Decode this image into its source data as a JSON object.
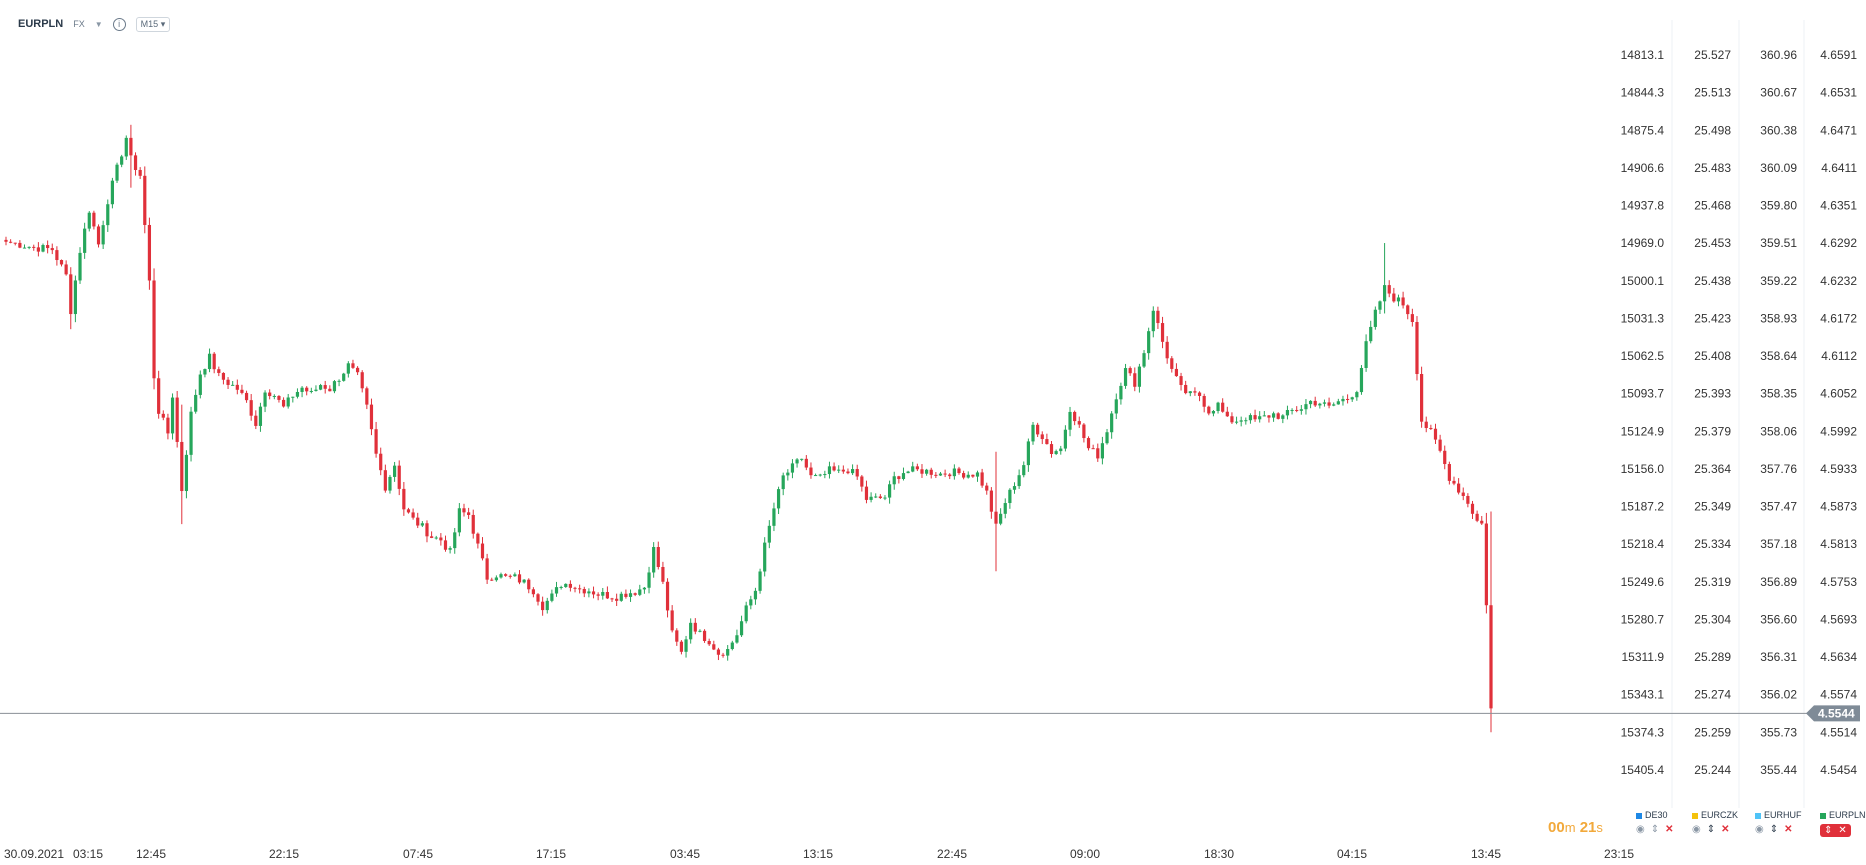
{
  "header": {
    "symbol": "EURPLN",
    "type": "FX",
    "info": "i",
    "timeframe": "M15"
  },
  "countdown": {
    "minutes": "00",
    "m": "m",
    "seconds": "21",
    "s": "s"
  },
  "current_price": "4.5544",
  "colors": {
    "up": "#26a65b",
    "down": "#e0303a",
    "price_tag": "#7f8b97",
    "countdown": "#f2a93b",
    "de30": "#1e88e5",
    "eurczk": "#f4c20d",
    "eurhuf": "#4fc3f7",
    "eurpln": "#26a65b"
  },
  "legend": [
    {
      "name": "DE30"
    },
    {
      "name": "EURCZK"
    },
    {
      "name": "EURHUF"
    },
    {
      "name": "EURPLN"
    }
  ],
  "chart_data": {
    "type": "candlestick",
    "time_labels": [
      "30.09.2021",
      "03:15",
      "12:45",
      "22:15",
      "07:45",
      "17:15",
      "03:45",
      "13:15",
      "22:45",
      "09:00",
      "18:30",
      "04:15",
      "13:45",
      "23:15"
    ],
    "y_axes": [
      {
        "name": "DE30",
        "ticks": [
          "14813.1",
          "14844.3",
          "14875.4",
          "14906.6",
          "14937.8",
          "14969.0",
          "15000.1",
          "15031.3",
          "15062.5",
          "15093.7",
          "15124.9",
          "15156.0",
          "15187.2",
          "15218.4",
          "15249.6",
          "15280.7",
          "15311.9",
          "15343.1",
          "15374.3",
          "15405.4"
        ]
      },
      {
        "name": "EURCZK",
        "ticks": [
          "25.527",
          "25.513",
          "25.498",
          "25.483",
          "25.468",
          "25.453",
          "25.438",
          "25.423",
          "25.408",
          "25.393",
          "25.379",
          "25.364",
          "25.349",
          "25.334",
          "25.319",
          "25.304",
          "25.289",
          "25.274",
          "25.259",
          "25.244"
        ]
      },
      {
        "name": "EURHUF",
        "ticks": [
          "360.96",
          "360.67",
          "360.38",
          "360.09",
          "359.80",
          "359.51",
          "359.22",
          "358.93",
          "358.64",
          "358.35",
          "358.06",
          "357.76",
          "357.47",
          "357.18",
          "356.89",
          "356.60",
          "356.31",
          "356.02",
          "355.73",
          "355.44"
        ]
      },
      {
        "name": "EURPLN",
        "ticks": [
          "4.6591",
          "4.6531",
          "4.6471",
          "4.6411",
          "4.6351",
          "4.6292",
          "4.6232",
          "4.6172",
          "4.6112",
          "4.6052",
          "4.5992",
          "4.5933",
          "4.5873",
          "4.5813",
          "4.5753",
          "4.5693",
          "4.5634",
          "4.5574",
          "4.5514",
          "4.5454"
        ]
      }
    ],
    "ylim": [
      4.5454,
      4.6591
    ],
    "close_path": [
      [
        0,
        4.6294
      ],
      [
        3,
        4.629
      ],
      [
        6,
        4.6285
      ],
      [
        10,
        4.6282
      ],
      [
        13,
        4.624
      ],
      [
        14,
        4.6185
      ],
      [
        16,
        4.628
      ],
      [
        18,
        4.6345
      ],
      [
        20,
        4.629
      ],
      [
        22,
        4.636
      ],
      [
        24,
        4.641
      ],
      [
        26,
        4.646
      ],
      [
        27,
        4.6425
      ],
      [
        29,
        4.64
      ],
      [
        30,
        4.632
      ],
      [
        31,
        4.623
      ],
      [
        32,
        4.608
      ],
      [
        33,
        4.6025
      ],
      [
        35,
        4.599
      ],
      [
        36,
        4.605
      ],
      [
        38,
        4.59
      ],
      [
        40,
        4.602
      ],
      [
        42,
        4.6085
      ],
      [
        44,
        4.611
      ],
      [
        46,
        4.608
      ],
      [
        48,
        4.607
      ],
      [
        50,
        4.606
      ],
      [
        52,
        4.604
      ],
      [
        54,
        4.6005
      ],
      [
        56,
        4.606
      ],
      [
        58,
        4.605
      ],
      [
        60,
        4.603
      ],
      [
        62,
        4.605
      ],
      [
        64,
        4.6062
      ],
      [
        66,
        4.6052
      ],
      [
        68,
        4.6067
      ],
      [
        70,
        4.606
      ],
      [
        72,
        4.6078
      ],
      [
        74,
        4.6097
      ],
      [
        76,
        4.608
      ],
      [
        78,
        4.603
      ],
      [
        80,
        4.5955
      ],
      [
        82,
        4.5905
      ],
      [
        84,
        4.594
      ],
      [
        86,
        4.587
      ],
      [
        88,
        4.5852
      ],
      [
        90,
        4.584
      ],
      [
        92,
        4.5825
      ],
      [
        94,
        4.582
      ],
      [
        96,
        4.58
      ],
      [
        98,
        4.5865
      ],
      [
        100,
        4.586
      ],
      [
        102,
        4.581
      ],
      [
        104,
        4.576
      ],
      [
        106,
        4.5765
      ],
      [
        108,
        4.576
      ],
      [
        110,
        4.576
      ],
      [
        112,
        4.5752
      ],
      [
        114,
        4.574
      ],
      [
        116,
        4.5715
      ],
      [
        118,
        4.573
      ],
      [
        120,
        4.575
      ],
      [
        122,
        4.575
      ],
      [
        124,
        4.5742
      ],
      [
        126,
        4.574
      ],
      [
        128,
        4.5734
      ],
      [
        130,
        4.5732
      ],
      [
        132,
        4.573
      ],
      [
        134,
        4.5735
      ],
      [
        136,
        4.5738
      ],
      [
        138,
        4.5745
      ],
      [
        140,
        4.5805
      ],
      [
        142,
        4.575
      ],
      [
        144,
        4.567
      ],
      [
        146,
        4.564
      ],
      [
        148,
        4.569
      ],
      [
        150,
        4.567
      ],
      [
        152,
        4.566
      ],
      [
        154,
        4.564
      ],
      [
        156,
        4.5645
      ],
      [
        158,
        4.567
      ],
      [
        160,
        4.571
      ],
      [
        162,
        4.574
      ],
      [
        164,
        4.581
      ],
      [
        166,
        4.587
      ],
      [
        168,
        4.592
      ],
      [
        170,
        4.5935
      ],
      [
        172,
        4.595
      ],
      [
        174,
        4.592
      ],
      [
        176,
        4.5918
      ],
      [
        178,
        4.593
      ],
      [
        180,
        4.5927
      ],
      [
        182,
        4.5932
      ],
      [
        184,
        4.592
      ],
      [
        186,
        4.5885
      ],
      [
        188,
        4.5885
      ],
      [
        190,
        4.5888
      ],
      [
        192,
        4.5918
      ],
      [
        194,
        4.5928
      ],
      [
        196,
        4.593
      ],
      [
        198,
        4.593
      ],
      [
        200,
        4.5928
      ],
      [
        202,
        4.5925
      ],
      [
        204,
        4.5928
      ],
      [
        206,
        4.5926
      ],
      [
        208,
        4.5925
      ],
      [
        210,
        4.5925
      ],
      [
        212,
        4.5895
      ],
      [
        214,
        4.584
      ],
      [
        216,
        4.588
      ],
      [
        218,
        4.591
      ],
      [
        220,
        4.594
      ],
      [
        222,
        4.6002
      ],
      [
        224,
        4.5985
      ],
      [
        226,
        4.596
      ],
      [
        228,
        4.5965
      ],
      [
        230,
        4.603
      ],
      [
        232,
        4.6
      ],
      [
        234,
        4.5965
      ],
      [
        236,
        4.5955
      ],
      [
        238,
        4.5995
      ],
      [
        240,
        4.605
      ],
      [
        242,
        4.609
      ],
      [
        244,
        4.607
      ],
      [
        246,
        4.612
      ],
      [
        248,
        4.6188
      ],
      [
        250,
        4.6135
      ],
      [
        252,
        4.609
      ],
      [
        254,
        4.606
      ],
      [
        256,
        4.605
      ],
      [
        258,
        4.605
      ],
      [
        260,
        4.6025
      ],
      [
        262,
        4.6035
      ],
      [
        264,
        4.601
      ],
      [
        266,
        4.601
      ],
      [
        268,
        4.6015
      ],
      [
        270,
        4.601
      ],
      [
        272,
        4.6015
      ],
      [
        274,
        4.602
      ],
      [
        276,
        4.6015
      ],
      [
        278,
        4.6025
      ],
      [
        280,
        4.603
      ],
      [
        282,
        4.604
      ],
      [
        284,
        4.6038
      ],
      [
        286,
        4.603
      ],
      [
        288,
        4.604
      ],
      [
        290,
        4.6045
      ],
      [
        292,
        4.606
      ],
      [
        294,
        4.613
      ],
      [
        296,
        4.618
      ],
      [
        298,
        4.622
      ],
      [
        300,
        4.6205
      ],
      [
        302,
        4.6195
      ],
      [
        304,
        4.617
      ],
      [
        306,
        4.601
      ],
      [
        308,
        4.599
      ],
      [
        310,
        4.596
      ],
      [
        312,
        4.592
      ],
      [
        314,
        4.59
      ],
      [
        316,
        4.588
      ],
      [
        318,
        4.585
      ],
      [
        319,
        4.5845
      ],
      [
        320,
        4.572
      ],
      [
        321,
        4.5552
      ]
    ],
    "extreme_wicks": [
      {
        "i": 27,
        "high": 4.648,
        "low": 4.638
      },
      {
        "i": 14,
        "high": 4.618,
        "low": 4.6155
      },
      {
        "i": 38,
        "high": 4.6035,
        "low": 4.5845
      },
      {
        "i": 214,
        "high": 4.596,
        "low": 4.577
      },
      {
        "i": 298,
        "high": 4.6292,
        "low": 4.618
      },
      {
        "i": 321,
        "high": 4.5865,
        "low": 4.5514
      }
    ]
  }
}
